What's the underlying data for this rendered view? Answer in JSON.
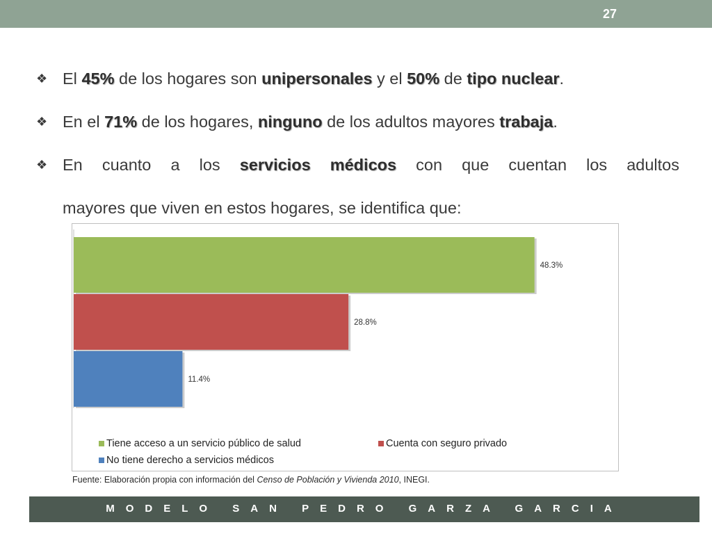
{
  "slide": {
    "page_number": "27",
    "footer": "MODELO SAN PEDRO GARZA GARCIA"
  },
  "bullets": [
    {
      "parts": [
        "El ",
        "45%",
        " de los hogares son ",
        "unipersonales",
        " y el ",
        "50%",
        " de ",
        "tipo nuclear",
        "."
      ]
    },
    {
      "parts": [
        "En el ",
        "71%",
        " de los hogares, ",
        "ninguno",
        " de los adultos mayores ",
        "trabaja",
        "."
      ]
    },
    {
      "parts": [
        "En cuanto a los ",
        "servicios médicos",
        " con que cuentan los adultos",
        "mayores que viven en estos hogares, se identifica que:"
      ]
    }
  ],
  "chart_data": {
    "type": "bar",
    "orientation": "horizontal",
    "title": "",
    "xlabel": "",
    "ylabel": "",
    "xlim": [
      0,
      50
    ],
    "grid": false,
    "legend_position": "bottom",
    "series": [
      {
        "name": "Tiene acceso a un servicio público de salud",
        "value": 48.3,
        "label": "48.3%",
        "color": "#9bbb59"
      },
      {
        "name": "Cuenta con seguro privado",
        "value": 28.8,
        "label": "28.8%",
        "color": "#c0504d"
      },
      {
        "name": "No tiene derecho a servicios médicos",
        "value": 11.4,
        "label": "11.4%",
        "color": "#4f81bd"
      }
    ]
  },
  "source_note": {
    "prefix": "Fuente: Elaboración propia con información del ",
    "italic": "Censo de Población y Vivienda  2010",
    "suffix": ", INEGI."
  },
  "colors": {
    "topbar": "#8fa394",
    "footer": "#4d5a52"
  }
}
